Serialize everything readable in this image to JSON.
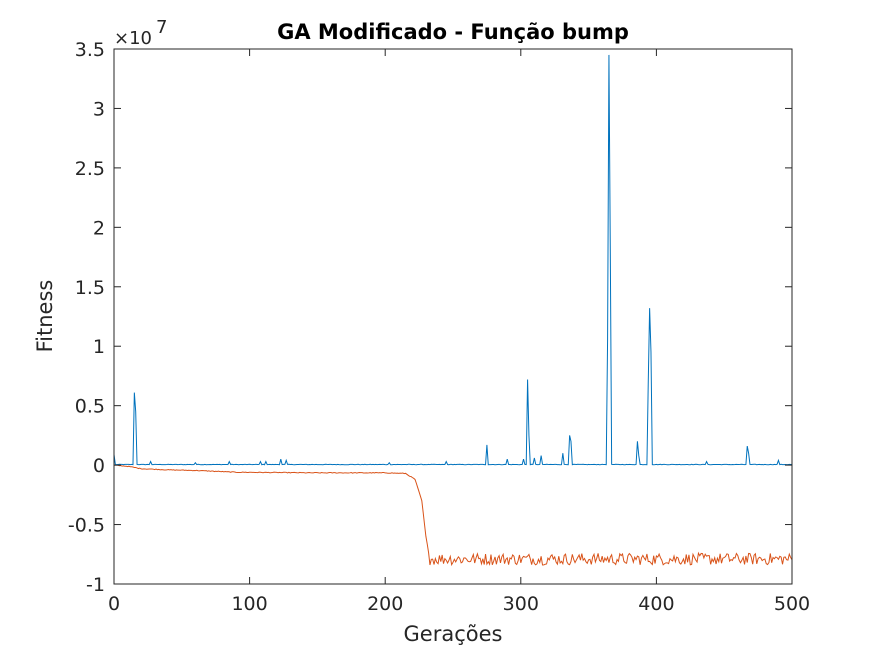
{
  "chart_data": {
    "type": "line",
    "title": "GA Modificado - Função bump",
    "xlabel": "Gerações",
    "ylabel": "Fitness",
    "y_exponent_label": "×10",
    "y_exponent": "7",
    "xlim": [
      0,
      500
    ],
    "ylim": [
      -1,
      3.5
    ],
    "y_scale_multiplier": 10000000,
    "x_ticks": [
      0,
      100,
      200,
      300,
      400,
      500
    ],
    "x_tick_labels": [
      "0",
      "100",
      "200",
      "300",
      "400",
      "500"
    ],
    "y_ticks": [
      -1,
      -0.5,
      0,
      0.5,
      1,
      1.5,
      2,
      2.5,
      3,
      3.5
    ],
    "y_tick_labels": [
      "-1",
      "-0.5",
      "0",
      "0.5",
      "1",
      "1.5",
      "2",
      "2.5",
      "3",
      "3.5"
    ],
    "grid": false,
    "series": [
      {
        "color": "#0072BD",
        "description": "blue series: baseline near 0 with spikes (values in units of 1e7)",
        "baseline": 0.005,
        "spikes": [
          [
            0,
            0.09
          ],
          [
            15,
            0.61
          ],
          [
            16,
            0.45
          ],
          [
            27,
            0.03
          ],
          [
            60,
            0.02
          ],
          [
            85,
            0.03
          ],
          [
            108,
            0.03
          ],
          [
            112,
            0.03
          ],
          [
            123,
            0.05
          ],
          [
            127,
            0.04
          ],
          [
            203,
            0.02
          ],
          [
            245,
            0.03
          ],
          [
            275,
            0.17
          ],
          [
            290,
            0.05
          ],
          [
            302,
            0.05
          ],
          [
            305,
            0.72
          ],
          [
            306,
            0.25
          ],
          [
            310,
            0.06
          ],
          [
            315,
            0.08
          ],
          [
            331,
            0.1
          ],
          [
            336,
            0.25
          ],
          [
            337,
            0.2
          ],
          [
            364,
            1.05
          ],
          [
            365,
            3.45
          ],
          [
            366,
            1.8
          ],
          [
            386,
            0.2
          ],
          [
            387,
            0.08
          ],
          [
            394,
            0.7
          ],
          [
            395,
            1.32
          ],
          [
            396,
            0.95
          ],
          [
            437,
            0.03
          ],
          [
            467,
            0.16
          ],
          [
            468,
            0.1
          ],
          [
            490,
            0.04
          ]
        ]
      },
      {
        "color": "#D95319",
        "description": "orange series: starts near 0, slowly decreases, drops sharply near generation 230 and fluctuates around -0.8 (units of 1e7)",
        "segments": [
          [
            0,
            0.0
          ],
          [
            10,
            -0.01
          ],
          [
            20,
            -0.03
          ],
          [
            40,
            -0.04
          ],
          [
            60,
            -0.045
          ],
          [
            90,
            -0.06
          ],
          [
            150,
            -0.065
          ],
          [
            200,
            -0.065
          ],
          [
            215,
            -0.07
          ],
          [
            222,
            -0.12
          ],
          [
            227,
            -0.3
          ],
          [
            230,
            -0.6
          ],
          [
            233,
            -0.8
          ]
        ],
        "noisy_tail": {
          "from": 233,
          "to": 500,
          "mean": -0.79,
          "amplitude": 0.05
        }
      }
    ]
  }
}
